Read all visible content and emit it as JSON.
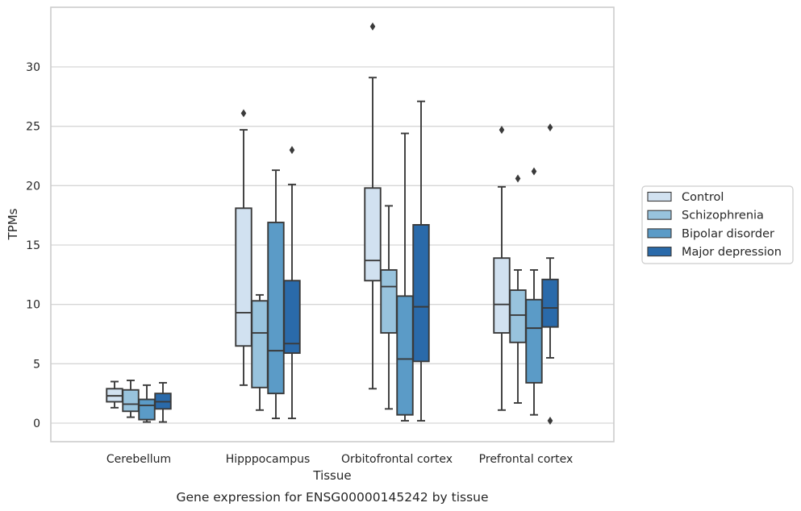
{
  "chart_data": {
    "type": "box",
    "xlabel": "Tissue",
    "ylabel": "TPMs",
    "caption": "Gene expression for ENSG00000145242 by tissue",
    "ylim": [
      -1.5,
      35
    ],
    "yticks": [
      0,
      5,
      10,
      15,
      20,
      25,
      30
    ],
    "grid": "horizontal",
    "legend_position": "right",
    "categories": [
      "Cerebellum",
      "Hipppocampus",
      "Orbitofrontal cortex",
      "Prefrontal cortex"
    ],
    "series": [
      {
        "name": "Control",
        "color": "#d1e1f0",
        "boxes": [
          {
            "whislo": 1.3,
            "q1": 1.8,
            "med": 2.3,
            "q3": 2.9,
            "whishi": 3.5,
            "fliers": []
          },
          {
            "whislo": 3.2,
            "q1": 6.5,
            "med": 9.3,
            "q3": 18.1,
            "whishi": 24.7,
            "fliers": [
              26.1
            ]
          },
          {
            "whislo": 2.9,
            "q1": 12.0,
            "med": 13.7,
            "q3": 19.8,
            "whishi": 29.1,
            "fliers": [
              33.4
            ]
          },
          {
            "whislo": 1.1,
            "q1": 7.6,
            "med": 10.0,
            "q3": 13.9,
            "whishi": 19.9,
            "fliers": [
              24.7
            ]
          }
        ]
      },
      {
        "name": "Schizophrenia",
        "color": "#98c3dd",
        "boxes": [
          {
            "whislo": 0.5,
            "q1": 1.0,
            "med": 1.6,
            "q3": 2.8,
            "whishi": 3.6,
            "fliers": []
          },
          {
            "whislo": 1.1,
            "q1": 3.0,
            "med": 7.6,
            "q3": 10.3,
            "whishi": 10.8,
            "fliers": []
          },
          {
            "whislo": 1.2,
            "q1": 7.6,
            "med": 11.5,
            "q3": 12.9,
            "whishi": 18.3,
            "fliers": []
          },
          {
            "whislo": 1.7,
            "q1": 6.8,
            "med": 9.1,
            "q3": 11.2,
            "whishi": 12.9,
            "fliers": [
              20.6
            ]
          }
        ]
      },
      {
        "name": "Bipolar disorder",
        "color": "#5b9bc7",
        "boxes": [
          {
            "whislo": 0.1,
            "q1": 0.3,
            "med": 1.5,
            "q3": 2.0,
            "whishi": 3.2,
            "fliers": []
          },
          {
            "whislo": 0.4,
            "q1": 2.5,
            "med": 6.1,
            "q3": 16.9,
            "whishi": 21.3,
            "fliers": []
          },
          {
            "whislo": 0.2,
            "q1": 0.7,
            "med": 5.4,
            "q3": 10.7,
            "whishi": 24.4,
            "fliers": []
          },
          {
            "whislo": 0.7,
            "q1": 3.4,
            "med": 8.0,
            "q3": 10.4,
            "whishi": 12.9,
            "fliers": [
              21.2
            ]
          }
        ]
      },
      {
        "name": "Major depression",
        "color": "#2a6aaa",
        "boxes": [
          {
            "whislo": 0.1,
            "q1": 1.2,
            "med": 1.8,
            "q3": 2.5,
            "whishi": 3.4,
            "fliers": []
          },
          {
            "whislo": 0.4,
            "q1": 5.9,
            "med": 6.7,
            "q3": 12.0,
            "whishi": 20.1,
            "fliers": [
              23.0
            ]
          },
          {
            "whislo": 0.2,
            "q1": 5.2,
            "med": 9.8,
            "q3": 16.7,
            "whishi": 27.1,
            "fliers": []
          },
          {
            "whislo": 5.5,
            "q1": 8.1,
            "med": 9.7,
            "q3": 12.1,
            "whishi": 13.9,
            "fliers": [
              24.9,
              0.2
            ]
          }
        ]
      }
    ]
  }
}
